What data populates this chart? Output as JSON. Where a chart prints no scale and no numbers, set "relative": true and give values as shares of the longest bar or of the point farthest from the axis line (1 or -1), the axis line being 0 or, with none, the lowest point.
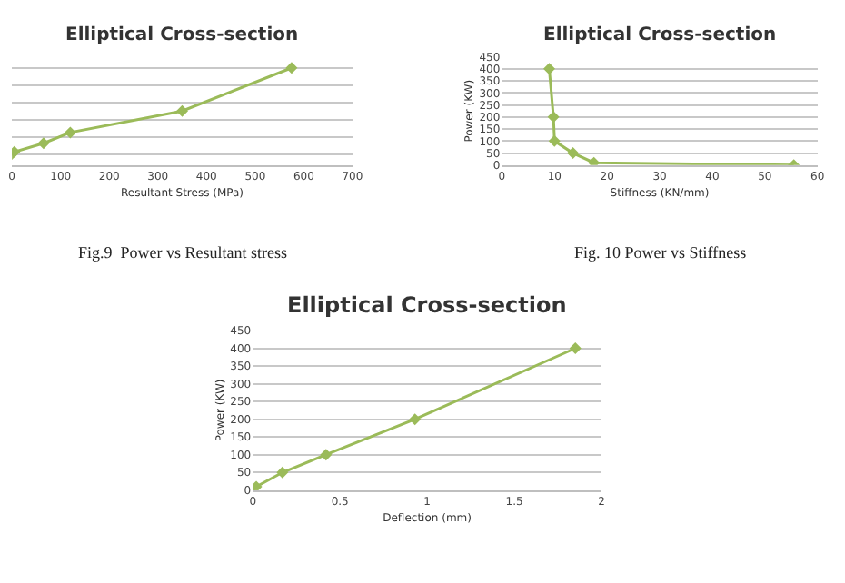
{
  "chart_data": [
    {
      "type": "line",
      "title": "Elliptical Cross-section",
      "xlabel": "Resultant Stress (MPa)",
      "x": [
        0,
        5,
        65,
        120,
        350,
        575
      ],
      "relative": true,
      "tick_labels": "x",
      "series": [
        {
          "color": "#9bbb59",
          "values": [
            0,
            0.025,
            0.125,
            0.25,
            0.5,
            1
          ]
        }
      ],
      "xlim": [
        0,
        700
      ],
      "xticks": [
        0,
        100,
        200,
        300,
        400,
        500,
        600,
        700
      ],
      "grid": "y",
      "marker": "diamond",
      "annotations": [
        "Fig.9  Power vs Resultant stress"
      ]
    },
    {
      "type": "line",
      "title": "Elliptical Cross-section",
      "xlabel": "Stiffness (KN/mm)",
      "ylabel": "Power (KW)",
      "x": [
        55.5,
        17.5,
        13.5,
        10,
        9.8,
        9
      ],
      "series": [
        {
          "color": "#9bbb59",
          "values": [
            0,
            10,
            50,
            100,
            200,
            400
          ]
        }
      ],
      "xlim": [
        0,
        60
      ],
      "xticks": [
        0,
        10,
        20,
        30,
        40,
        50,
        60
      ],
      "ylim": [
        0,
        450
      ],
      "yticks": [
        0,
        50,
        100,
        150,
        200,
        250,
        300,
        350,
        400,
        450
      ],
      "grid": "y",
      "marker": "diamond",
      "annotations": [
        "Fig. 10 Power vs Stiffness"
      ]
    },
    {
      "type": "line",
      "title": "Elliptical Cross-section",
      "xlabel": "Deflection (mm)",
      "ylabel": "Power (KW)",
      "x": [
        0,
        0.02,
        0.17,
        0.42,
        0.93,
        1.85
      ],
      "series": [
        {
          "color": "#9bbb59",
          "values": [
            0,
            10,
            50,
            100,
            200,
            400
          ]
        }
      ],
      "xlim": [
        0,
        2
      ],
      "xticks": [
        0,
        0.5,
        1,
        1.5,
        2
      ],
      "ylim": [
        0,
        450
      ],
      "yticks": [
        0,
        50,
        100,
        150,
        200,
        250,
        300,
        350,
        400,
        450
      ],
      "grid": "y",
      "marker": "diamond"
    }
  ]
}
